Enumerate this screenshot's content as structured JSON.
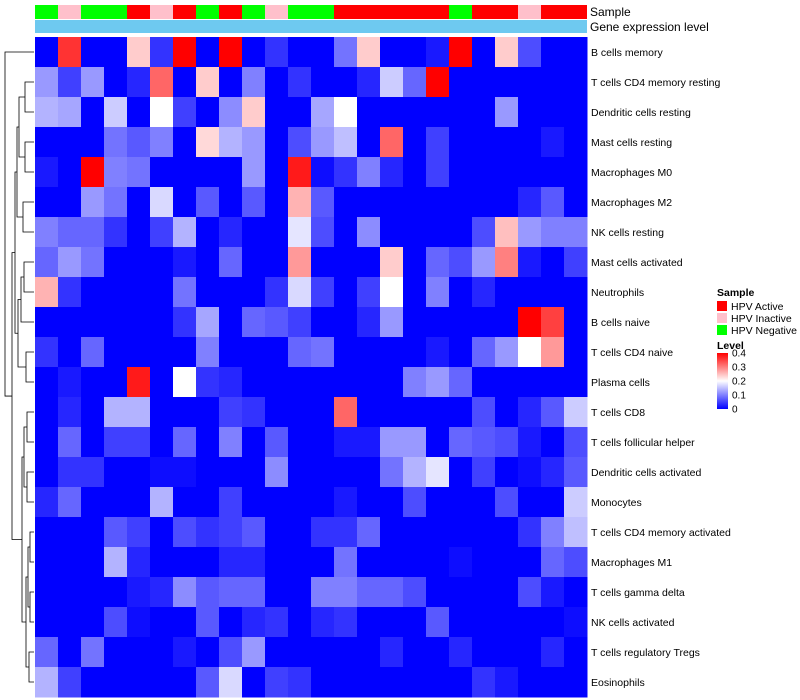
{
  "chart_data": {
    "type": "heatmap",
    "annotation_tracks": [
      {
        "name": "Sample",
        "label": "Sample"
      },
      {
        "name": "Gene expression level",
        "label": "Gene expression level"
      }
    ],
    "sample_groups": [
      "Negative",
      "Inactive",
      "Negative",
      "Negative",
      "Active",
      "Inactive",
      "Active",
      "Negative",
      "Active",
      "Negative",
      "Inactive",
      "Negative",
      "Negative",
      "Active",
      "Active",
      "Active",
      "Active",
      "Active",
      "Negative",
      "Active",
      "Active",
      "Inactive",
      "Active",
      "Active"
    ],
    "expression_level_color": "#6ec9f0",
    "rows": [
      "B cells memory",
      "T cells CD4 memory resting",
      "Dendritic cells resting",
      "Mast cells resting",
      "Macrophages M0",
      "Macrophages M2",
      "NK cells resting",
      "Mast cells activated",
      "Neutrophils",
      "B cells naive",
      "T cells CD4 naive",
      "Plasma cells",
      "T cells CD8",
      "T cells follicular helper",
      "Dendritic cells activated",
      "Monocytes",
      "T cells CD4 memory activated",
      "Macrophages M1",
      "T cells gamma delta",
      "NK cells activated",
      "T cells regulatory  Tregs",
      "Eosinophils"
    ],
    "values": [
      [
        0.0,
        0.36,
        0.0,
        0.0,
        0.24,
        0.04,
        0.4,
        0.0,
        0.4,
        0.0,
        0.04,
        0.0,
        0.0,
        0.09,
        0.24,
        0.0,
        0.0,
        0.02,
        0.4,
        0.0,
        0.24,
        0.06,
        0.0,
        0.0
      ],
      [
        0.12,
        0.05,
        0.12,
        0.0,
        0.03,
        0.32,
        0.0,
        0.24,
        0.0,
        0.1,
        0.0,
        0.04,
        0.0,
        0.0,
        0.03,
        0.16,
        0.08,
        0.4,
        0.0,
        0.0,
        0.0,
        0.0,
        0.0,
        0.0
      ],
      [
        0.14,
        0.13,
        0.0,
        0.16,
        0.0,
        0.2,
        0.05,
        0.0,
        0.11,
        0.24,
        0.0,
        0.0,
        0.13,
        0.2,
        0.0,
        0.0,
        0.0,
        0.0,
        0.0,
        0.0,
        0.12,
        0.0,
        0.0,
        0.0
      ],
      [
        0.0,
        0.0,
        0.0,
        0.09,
        0.07,
        0.1,
        0.0,
        0.23,
        0.14,
        0.12,
        0.0,
        0.06,
        0.12,
        0.15,
        0.0,
        0.32,
        0.0,
        0.05,
        0.0,
        0.0,
        0.0,
        0.0,
        0.02,
        0.0
      ],
      [
        0.02,
        0.0,
        0.4,
        0.1,
        0.09,
        0.0,
        0.0,
        0.0,
        0.0,
        0.12,
        0.0,
        0.38,
        0.01,
        0.04,
        0.1,
        0.03,
        0.0,
        0.05,
        0.0,
        0.0,
        0.0,
        0.0,
        0.0,
        0.0
      ],
      [
        0.0,
        0.0,
        0.12,
        0.09,
        0.0,
        0.17,
        0.0,
        0.07,
        0.0,
        0.07,
        0.0,
        0.26,
        0.07,
        0.0,
        0.0,
        0.0,
        0.0,
        0.0,
        0.0,
        0.0,
        0.0,
        0.03,
        0.07,
        0.0
      ],
      [
        0.1,
        0.08,
        0.08,
        0.04,
        0.0,
        0.05,
        0.14,
        0.0,
        0.03,
        0.0,
        0.0,
        0.18,
        0.06,
        0.0,
        0.11,
        0.0,
        0.0,
        0.0,
        0.0,
        0.06,
        0.25,
        0.12,
        0.1,
        0.1
      ],
      [
        0.08,
        0.12,
        0.09,
        0.0,
        0.0,
        0.0,
        0.02,
        0.0,
        0.08,
        0.0,
        0.0,
        0.28,
        0.0,
        0.0,
        0.0,
        0.24,
        0.0,
        0.08,
        0.06,
        0.12,
        0.3,
        0.02,
        0.0,
        0.05
      ],
      [
        0.26,
        0.04,
        0.0,
        0.0,
        0.0,
        0.0,
        0.09,
        0.0,
        0.0,
        0.0,
        0.04,
        0.17,
        0.05,
        0.0,
        0.05,
        0.2,
        0.0,
        0.1,
        0.0,
        0.03,
        0.0,
        0.0,
        0.0,
        0.0
      ],
      [
        0.0,
        0.0,
        0.0,
        0.0,
        0.0,
        0.0,
        0.04,
        0.13,
        0.0,
        0.08,
        0.07,
        0.05,
        0.0,
        0.0,
        0.03,
        0.12,
        0.0,
        0.0,
        0.0,
        0.0,
        0.0,
        0.4,
        0.35,
        0.0
      ],
      [
        0.04,
        0.0,
        0.08,
        0.0,
        0.0,
        0.0,
        0.0,
        0.1,
        0.0,
        0.0,
        0.0,
        0.08,
        0.09,
        0.0,
        0.0,
        0.0,
        0.0,
        0.02,
        0.0,
        0.08,
        0.12,
        0.2,
        0.28,
        0.0
      ],
      [
        0.0,
        0.02,
        0.0,
        0.0,
        0.38,
        0.0,
        0.2,
        0.04,
        0.03,
        0.0,
        0.0,
        0.0,
        0.0,
        0.0,
        0.0,
        0.0,
        0.1,
        0.12,
        0.08,
        0.0,
        0.0,
        0.0,
        0.0,
        0.0
      ],
      [
        0.0,
        0.03,
        0.0,
        0.14,
        0.14,
        0.0,
        0.0,
        0.0,
        0.05,
        0.04,
        0.0,
        0.0,
        0.0,
        0.32,
        0.0,
        0.0,
        0.0,
        0.0,
        0.0,
        0.06,
        0.0,
        0.03,
        0.07,
        0.16
      ],
      [
        0.0,
        0.08,
        0.0,
        0.05,
        0.05,
        0.0,
        0.08,
        0.0,
        0.1,
        0.0,
        0.07,
        0.0,
        0.0,
        0.02,
        0.02,
        0.12,
        0.12,
        0.0,
        0.08,
        0.07,
        0.06,
        0.02,
        0.0,
        0.06
      ],
      [
        0.0,
        0.04,
        0.04,
        0.0,
        0.0,
        0.01,
        0.01,
        0.0,
        0.0,
        0.0,
        0.11,
        0.0,
        0.0,
        0.0,
        0.0,
        0.09,
        0.14,
        0.18,
        0.0,
        0.05,
        0.0,
        0.01,
        0.03,
        0.07
      ],
      [
        0.03,
        0.08,
        0.0,
        0.0,
        0.0,
        0.14,
        0.0,
        0.0,
        0.05,
        0.0,
        0.0,
        0.0,
        0.0,
        0.02,
        0.0,
        0.0,
        0.06,
        0.0,
        0.0,
        0.0,
        0.06,
        0.0,
        0.0,
        0.16
      ],
      [
        0.0,
        0.0,
        0.0,
        0.07,
        0.05,
        0.0,
        0.06,
        0.04,
        0.05,
        0.07,
        0.0,
        0.0,
        0.04,
        0.04,
        0.08,
        0.0,
        0.0,
        0.0,
        0.0,
        0.0,
        0.0,
        0.04,
        0.1,
        0.15
      ],
      [
        0.0,
        0.0,
        0.0,
        0.14,
        0.03,
        0.0,
        0.0,
        0.0,
        0.03,
        0.03,
        0.0,
        0.0,
        0.0,
        0.09,
        0.0,
        0.0,
        0.0,
        0.0,
        0.01,
        0.0,
        0.0,
        0.0,
        0.08,
        0.06
      ],
      [
        0.0,
        0.0,
        0.0,
        0.0,
        0.02,
        0.03,
        0.11,
        0.07,
        0.08,
        0.08,
        0.0,
        0.0,
        0.1,
        0.1,
        0.08,
        0.08,
        0.06,
        0.0,
        0.0,
        0.0,
        0.0,
        0.06,
        0.02,
        0.0
      ],
      [
        0.0,
        0.0,
        0.0,
        0.06,
        0.01,
        0.0,
        0.0,
        0.07,
        0.0,
        0.03,
        0.04,
        0.0,
        0.03,
        0.04,
        0.0,
        0.0,
        0.0,
        0.07,
        0.0,
        0.0,
        0.0,
        0.0,
        0.0,
        0.01
      ],
      [
        0.08,
        0.0,
        0.09,
        0.0,
        0.0,
        0.0,
        0.02,
        0.0,
        0.06,
        0.12,
        0.0,
        0.0,
        0.0,
        0.0,
        0.0,
        0.03,
        0.0,
        0.0,
        0.03,
        0.0,
        0.0,
        0.0,
        0.03,
        0.0
      ],
      [
        0.14,
        0.05,
        0.0,
        0.0,
        0.0,
        0.0,
        0.0,
        0.07,
        0.17,
        0.0,
        0.05,
        0.04,
        0.0,
        0.0,
        0.0,
        0.0,
        0.0,
        0.0,
        0.0,
        0.04,
        0.02,
        0.0,
        0.0,
        0.0
      ]
    ],
    "color_scale": {
      "min": 0,
      "max": 0.4,
      "low": "#0000ff",
      "mid": "#ffffff",
      "high": "#ff0000"
    },
    "legend": {
      "sample": {
        "title": "Sample",
        "items": [
          {
            "label": "HPV Active",
            "color": "#ff0000"
          },
          {
            "label": "HPV Inactive",
            "color": "#ffc0cb"
          },
          {
            "label": "HPV Negative",
            "color": "#00ff00"
          }
        ]
      },
      "level": {
        "title": "Level",
        "ticks": [
          {
            "value": 0.4,
            "label": "0.4"
          },
          {
            "value": 0.3,
            "label": "0.3"
          },
          {
            "value": 0.2,
            "label": "0.2"
          },
          {
            "value": 0.1,
            "label": "0.1"
          },
          {
            "value": 0,
            "label": "0"
          }
        ]
      }
    },
    "row_dendrogram": "hierarchical clustering of rows (left side)"
  }
}
